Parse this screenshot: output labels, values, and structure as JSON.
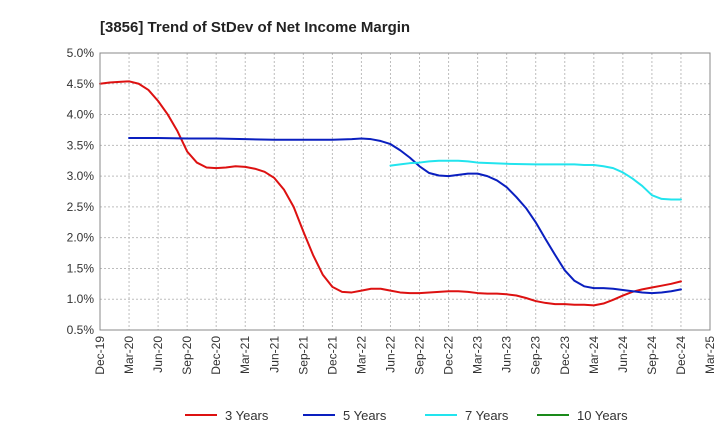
{
  "chart_data": {
    "type": "line",
    "title": "[3856]  Trend of StDev of Net Income Margin",
    "xlabel": "",
    "ylabel": "",
    "x_ticks": [
      "Dec-19",
      "Mar-20",
      "Jun-20",
      "Sep-20",
      "Dec-20",
      "Mar-21",
      "Jun-21",
      "Sep-21",
      "Dec-21",
      "Mar-22",
      "Jun-22",
      "Sep-22",
      "Dec-22",
      "Mar-23",
      "Jun-23",
      "Sep-23",
      "Dec-23",
      "Mar-24",
      "Jun-24",
      "Sep-24",
      "Dec-24",
      "Mar-25"
    ],
    "y_ticks": [
      "0.5%",
      "1.0%",
      "1.5%",
      "2.0%",
      "2.5%",
      "3.0%",
      "3.5%",
      "4.0%",
      "4.5%",
      "5.0%"
    ],
    "ylim": [
      0.5,
      5.0
    ],
    "grid": true,
    "legend_position": "bottom",
    "series": [
      {
        "name": "3 Years",
        "color": "#dd1111",
        "points": [
          [
            "Dec-19",
            4.5
          ],
          [
            "Jan-20",
            4.52
          ],
          [
            "Feb-20",
            4.53
          ],
          [
            "Mar-20",
            4.54
          ],
          [
            "Apr-20",
            4.5
          ],
          [
            "May-20",
            4.4
          ],
          [
            "Jun-20",
            4.22
          ],
          [
            "Jul-20",
            4.0
          ],
          [
            "Aug-20",
            3.73
          ],
          [
            "Sep-20",
            3.4
          ],
          [
            "Oct-20",
            3.22
          ],
          [
            "Nov-20",
            3.14
          ],
          [
            "Dec-20",
            3.13
          ],
          [
            "Jan-21",
            3.14
          ],
          [
            "Feb-21",
            3.16
          ],
          [
            "Mar-21",
            3.15
          ],
          [
            "Apr-21",
            3.12
          ],
          [
            "May-21",
            3.07
          ],
          [
            "Jun-21",
            2.97
          ],
          [
            "Jul-21",
            2.78
          ],
          [
            "Aug-21",
            2.5
          ],
          [
            "Sep-21",
            2.1
          ],
          [
            "Oct-21",
            1.72
          ],
          [
            "Nov-21",
            1.4
          ],
          [
            "Dec-21",
            1.2
          ],
          [
            "Jan-22",
            1.12
          ],
          [
            "Feb-22",
            1.11
          ],
          [
            "Mar-22",
            1.14
          ],
          [
            "Apr-22",
            1.17
          ],
          [
            "May-22",
            1.17
          ],
          [
            "Jun-22",
            1.14
          ],
          [
            "Jul-22",
            1.11
          ],
          [
            "Aug-22",
            1.1
          ],
          [
            "Sep-22",
            1.1
          ],
          [
            "Oct-22",
            1.11
          ],
          [
            "Nov-22",
            1.12
          ],
          [
            "Dec-22",
            1.13
          ],
          [
            "Jan-23",
            1.13
          ],
          [
            "Feb-23",
            1.12
          ],
          [
            "Mar-23",
            1.1
          ],
          [
            "Apr-23",
            1.09
          ],
          [
            "May-23",
            1.09
          ],
          [
            "Jun-23",
            1.08
          ],
          [
            "Jul-23",
            1.06
          ],
          [
            "Aug-23",
            1.02
          ],
          [
            "Sep-23",
            0.97
          ],
          [
            "Oct-23",
            0.94
          ],
          [
            "Nov-23",
            0.92
          ],
          [
            "Dec-23",
            0.92
          ],
          [
            "Jan-24",
            0.91
          ],
          [
            "Feb-24",
            0.91
          ],
          [
            "Mar-24",
            0.9
          ],
          [
            "Apr-24",
            0.93
          ],
          [
            "May-24",
            0.99
          ],
          [
            "Jun-24",
            1.06
          ],
          [
            "Jul-24",
            1.12
          ],
          [
            "Aug-24",
            1.16
          ],
          [
            "Sep-24",
            1.19
          ],
          [
            "Oct-24",
            1.22
          ],
          [
            "Nov-24",
            1.25
          ],
          [
            "Dec-24",
            1.29
          ]
        ]
      },
      {
        "name": "5 Years",
        "color": "#0a1fbf",
        "points": [
          [
            "Mar-20",
            3.62
          ],
          [
            "Jun-20",
            3.62
          ],
          [
            "Sep-20",
            3.61
          ],
          [
            "Dec-20",
            3.61
          ],
          [
            "Mar-21",
            3.6
          ],
          [
            "Jun-21",
            3.59
          ],
          [
            "Sep-21",
            3.59
          ],
          [
            "Dec-21",
            3.59
          ],
          [
            "Feb-22",
            3.6
          ],
          [
            "Mar-22",
            3.61
          ],
          [
            "Apr-22",
            3.6
          ],
          [
            "May-22",
            3.57
          ],
          [
            "Jun-22",
            3.52
          ],
          [
            "Jul-22",
            3.42
          ],
          [
            "Aug-22",
            3.3
          ],
          [
            "Sep-22",
            3.16
          ],
          [
            "Oct-22",
            3.05
          ],
          [
            "Nov-22",
            3.01
          ],
          [
            "Dec-22",
            3.0
          ],
          [
            "Jan-23",
            3.02
          ],
          [
            "Feb-23",
            3.04
          ],
          [
            "Mar-23",
            3.04
          ],
          [
            "Apr-23",
            3.0
          ],
          [
            "May-23",
            2.93
          ],
          [
            "Jun-23",
            2.82
          ],
          [
            "Jul-23",
            2.66
          ],
          [
            "Aug-23",
            2.48
          ],
          [
            "Sep-23",
            2.25
          ],
          [
            "Oct-23",
            1.98
          ],
          [
            "Nov-23",
            1.72
          ],
          [
            "Dec-23",
            1.47
          ],
          [
            "Jan-24",
            1.3
          ],
          [
            "Feb-24",
            1.21
          ],
          [
            "Mar-24",
            1.18
          ],
          [
            "Apr-24",
            1.18
          ],
          [
            "May-24",
            1.17
          ],
          [
            "Jun-24",
            1.15
          ],
          [
            "Jul-24",
            1.13
          ],
          [
            "Aug-24",
            1.11
          ],
          [
            "Sep-24",
            1.1
          ],
          [
            "Oct-24",
            1.11
          ],
          [
            "Nov-24",
            1.13
          ],
          [
            "Dec-24",
            1.16
          ]
        ]
      },
      {
        "name": "7 Years",
        "color": "#22e4ee",
        "points": [
          [
            "Jun-22",
            3.17
          ],
          [
            "Jul-22",
            3.19
          ],
          [
            "Aug-22",
            3.21
          ],
          [
            "Sep-22",
            3.22
          ],
          [
            "Oct-22",
            3.24
          ],
          [
            "Nov-22",
            3.25
          ],
          [
            "Dec-22",
            3.25
          ],
          [
            "Jan-23",
            3.25
          ],
          [
            "Feb-23",
            3.24
          ],
          [
            "Mar-23",
            3.22
          ],
          [
            "Jun-23",
            3.2
          ],
          [
            "Sep-23",
            3.19
          ],
          [
            "Dec-23",
            3.19
          ],
          [
            "Jan-24",
            3.19
          ],
          [
            "Feb-24",
            3.18
          ],
          [
            "Mar-24",
            3.18
          ],
          [
            "Apr-24",
            3.16
          ],
          [
            "May-24",
            3.13
          ],
          [
            "Jun-24",
            3.06
          ],
          [
            "Jul-24",
            2.96
          ],
          [
            "Aug-24",
            2.84
          ],
          [
            "Sep-24",
            2.69
          ],
          [
            "Oct-24",
            2.63
          ],
          [
            "Nov-24",
            2.62
          ],
          [
            "Dec-24",
            2.62
          ]
        ]
      },
      {
        "name": "10 Years",
        "color": "#1a8a1a",
        "points": []
      }
    ]
  }
}
